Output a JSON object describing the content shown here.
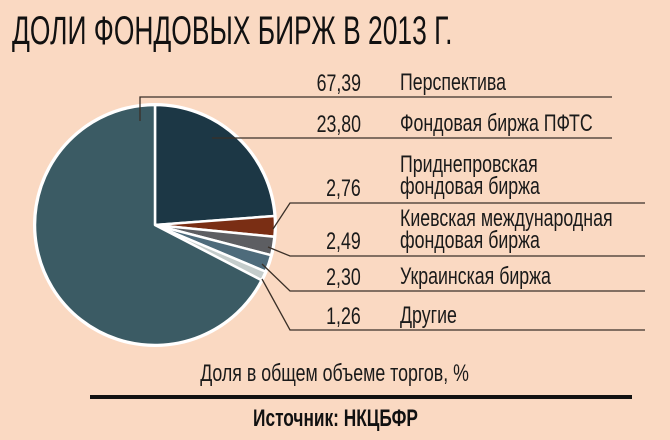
{
  "title": "ДОЛИ ФОНДОВЫХ БИРЖ В 2013 Г.",
  "subtitle": "Доля в общем объеме торгов, %",
  "source": "Источник: НКЦБФР",
  "colors": {
    "background": "#fad9c2",
    "perspektiva": "#3b5b64",
    "pfts": "#1c3745",
    "pridnepr": "#7a2e14",
    "kiev": "#5d5e62",
    "ukr": "#4e6b7b",
    "other": "#c4cccb"
  },
  "legend": [
    {
      "value": "67,39",
      "label_line1": "Перспектива",
      "label_line2": ""
    },
    {
      "value": "23,80",
      "label_line1": "Фондовая биржа ПФТС",
      "label_line2": ""
    },
    {
      "value": "2,76",
      "label_line1": "Приднепровская",
      "label_line2": "фондовая биржа"
    },
    {
      "value": "2,49",
      "label_line1": "Киевская международная",
      "label_line2": "фондовая биржа"
    },
    {
      "value": "2,30",
      "label_line1": "Украинская биржа",
      "label_line2": ""
    },
    {
      "value": "1,26",
      "label_line1": "Другие",
      "label_line2": ""
    }
  ],
  "chart_data": {
    "type": "pie",
    "title": "ДОЛИ ФОНДОВЫХ БИРЖ В 2013 Г.",
    "subtitle": "Доля в общем объеме торгов, %",
    "source": "Источник: НКЦБФР",
    "unit": "%",
    "categories": [
      "Перспектива",
      "Фондовая биржа ПФТС",
      "Приднепровская фондовая биржа",
      "Киевская международная фондовая биржа",
      "Украинская биржа",
      "Другие"
    ],
    "values": [
      67.39,
      23.8,
      2.76,
      2.49,
      2.3,
      1.26
    ],
    "colors": [
      "#3b5b64",
      "#1c3745",
      "#7a2e14",
      "#5d5e62",
      "#4e6b7b",
      "#c4cccb"
    ],
    "legend_position": "right",
    "start_angle": "12 o'clock, clockwise starting with ПФТС"
  }
}
